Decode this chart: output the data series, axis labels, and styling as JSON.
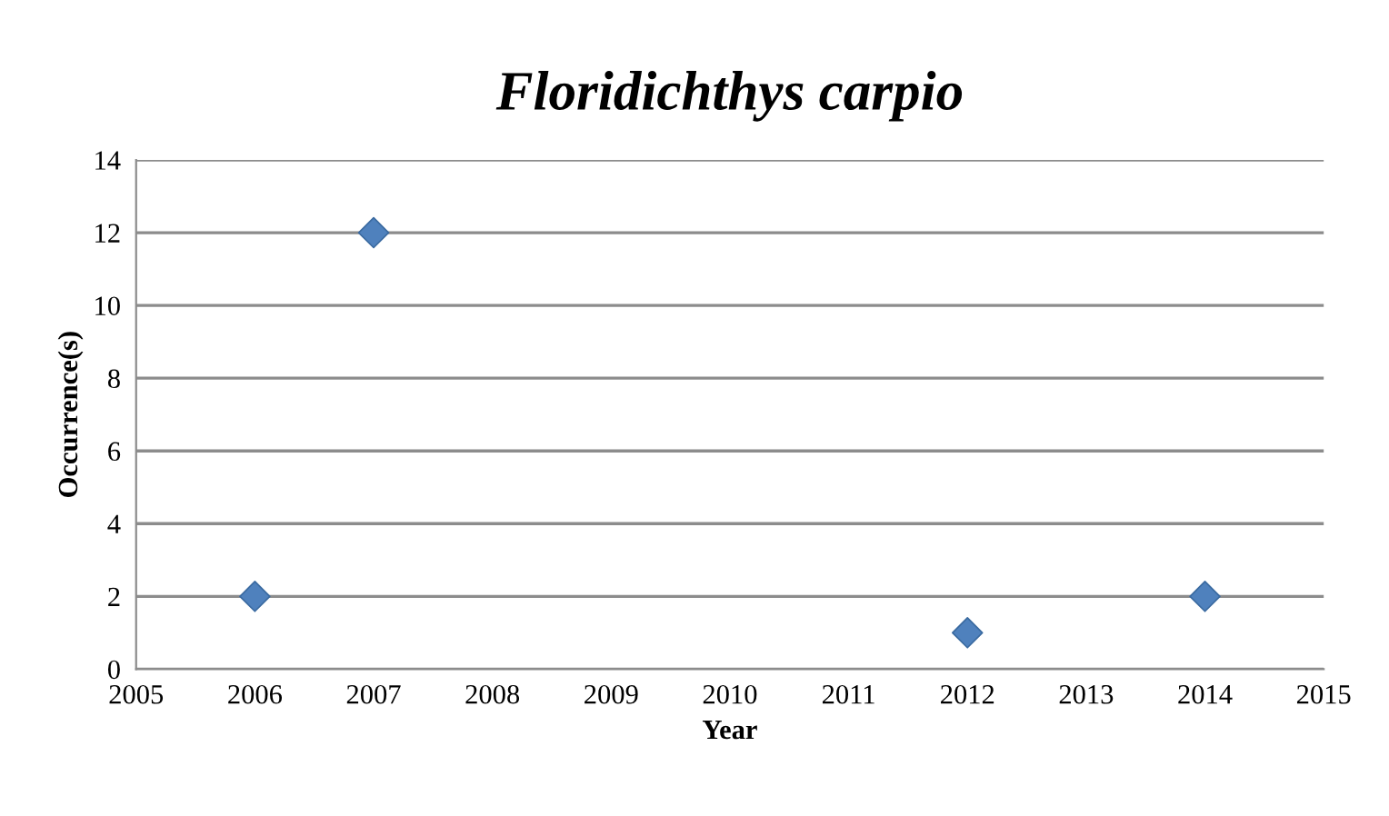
{
  "chart_data": {
    "type": "scatter",
    "title": "Floridichthys carpio",
    "xlabel": "Year",
    "ylabel": "Occurrence(s)",
    "x": [
      2006,
      2007,
      2012,
      2014
    ],
    "series": [
      {
        "color": "#4f81bd",
        "values": [
          2,
          12,
          1,
          2
        ]
      }
    ],
    "marker": "diamond",
    "xlim": [
      2005,
      2015
    ],
    "xticks": [
      2005,
      2006,
      2007,
      2008,
      2009,
      2010,
      2011,
      2012,
      2013,
      2014,
      2015
    ],
    "ylim": [
      0,
      14
    ],
    "yticks": [
      0,
      2,
      4,
      6,
      8,
      10,
      12,
      14
    ],
    "grid": "y",
    "legend": false
  }
}
